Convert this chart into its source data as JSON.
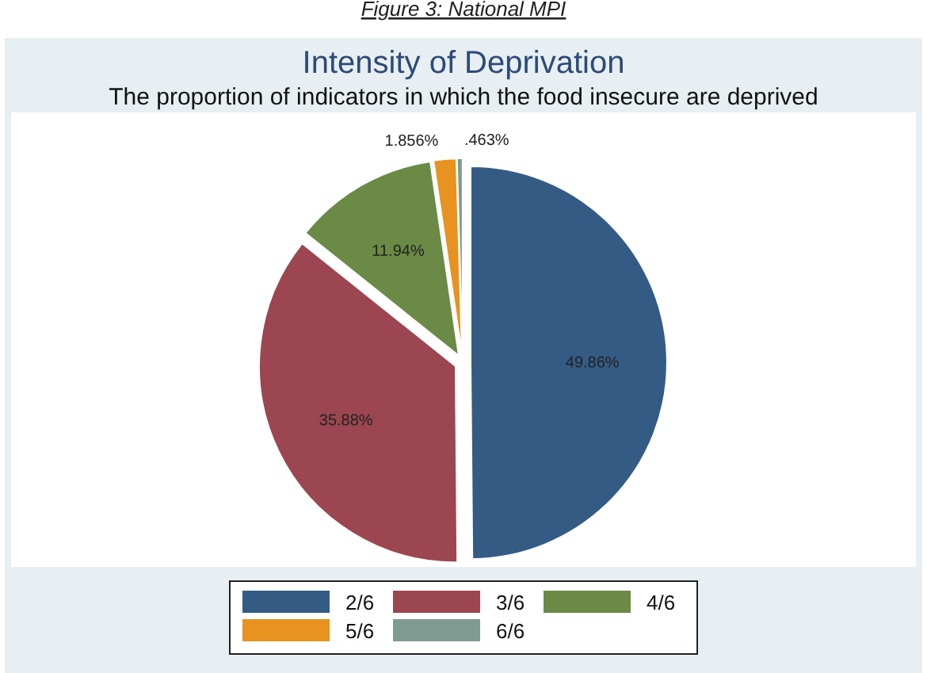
{
  "chart_data": {
    "type": "pie",
    "title": "Intensity of Deprivation",
    "subtitle": "The proportion of indicators in which the food insecure are deprived",
    "annotations": [
      "Figure 3: National MPI"
    ],
    "categories": [
      "2/6",
      "3/6",
      "4/6",
      "5/6",
      "6/6"
    ],
    "values": [
      49.86,
      35.88,
      11.94,
      1.856,
      0.463
    ],
    "value_labels": [
      "49.86%",
      "35.88%",
      "11.94%",
      "1.856%",
      ".463%"
    ],
    "colors": [
      "#345b84",
      "#9b4650",
      "#6a8a45",
      "#e8921f",
      "#7f9a90"
    ],
    "legend": "bottom"
  }
}
